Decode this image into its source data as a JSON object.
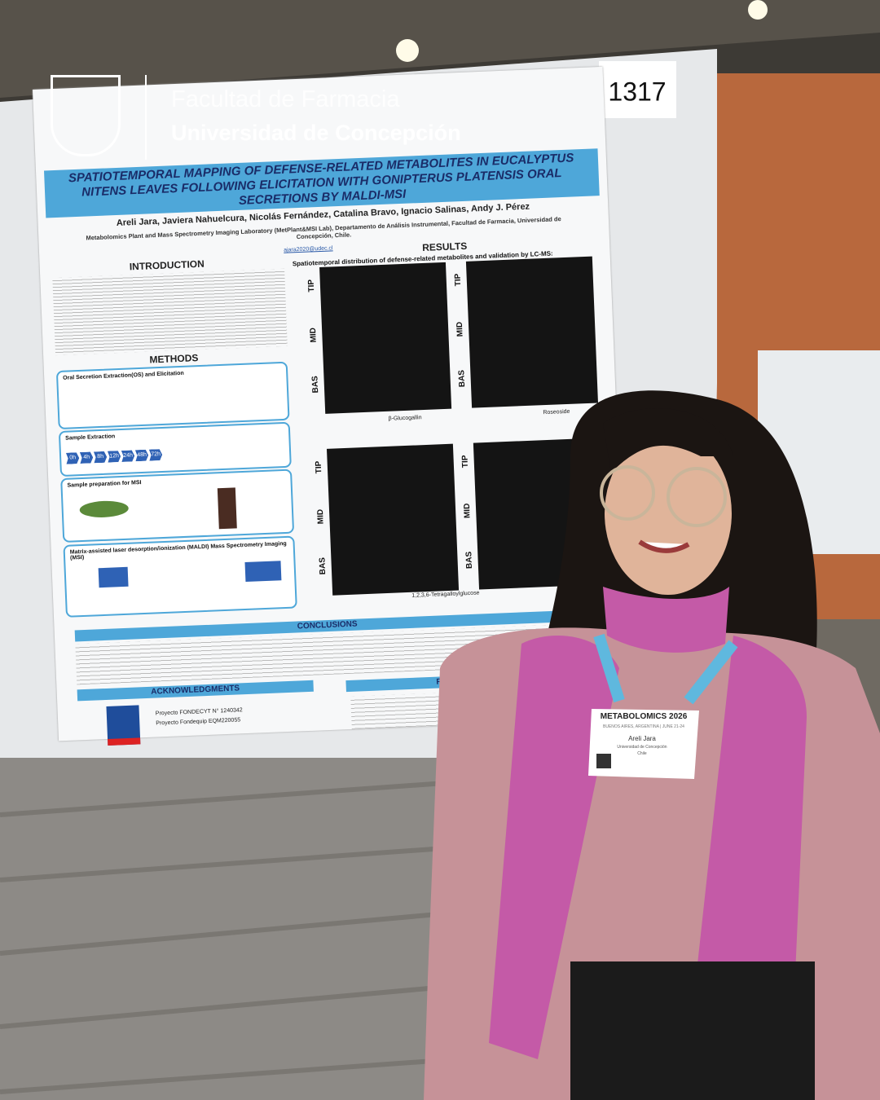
{
  "logo": {
    "faculty": "Facultad de Farmacia",
    "university": "Universidad de Concepción"
  },
  "poster": {
    "number": "1317",
    "title": "SPATIOTEMPORAL MAPPING OF DEFENSE-RELATED METABOLITES IN EUCALYPTUS NITENS LEAVES FOLLOWING ELICITATION WITH GONIPTERUS PLATENSIS ORAL SECRETIONS BY MALDI-MSI",
    "authors": "Areli Jara, Javiera Nahuelcura, Nicolás Fernández, Catalina Bravo, Ignacio Salinas, Andy J. Pérez",
    "affiliation": "Metabolomics Plant and Mass Spectrometry Imaging Laboratory (MetPlant&MSI Lab), Departamento de Análisis Instrumental, Facultad de Farmacia, Universidad de Concepción, Chile.",
    "email": "ajara2020@udec.cl",
    "introduction": "INTRODUCTION",
    "methods": {
      "heading": "METHODS",
      "steps": [
        "Oral Secretion Extraction(OS) and Elicitation",
        "Sample Extraction",
        "Sample preparation for MSI",
        "Matrix-assisted laser desorption/ionization (MALDI) Mass Spectrometry Imaging (MSI)"
      ],
      "times": [
        "0h",
        "4h",
        "8h",
        "12h",
        "24h",
        "48h",
        "72h"
      ]
    },
    "results": {
      "heading": "RESULTS",
      "subtitle": "Spatiotemporal distribution of defense-related metabolites and validation by LC-MS:",
      "zones": [
        "TIP",
        "MID",
        "BAS"
      ],
      "molecules": [
        "β-Glucogallin",
        "Roseoside",
        "1,2,3,6-Tetragalloylglucose"
      ]
    },
    "conclusions": "CONCLUSIONS",
    "acknowledgments": {
      "heading": "ACKNOWLEDGMENTS",
      "items": [
        "Proyecto FONDECYT N° 1240342",
        "Proyecto Fondequip EQM220055"
      ]
    },
    "references": "REFERENCES"
  },
  "badge": {
    "event": "METABOLOMICS 2026",
    "place": "BUENOS AIRES, ARGENTINA | JUNE 21-24",
    "name": "Areli Jara",
    "institution": "Universidad de Concepción",
    "country": "Chile"
  }
}
